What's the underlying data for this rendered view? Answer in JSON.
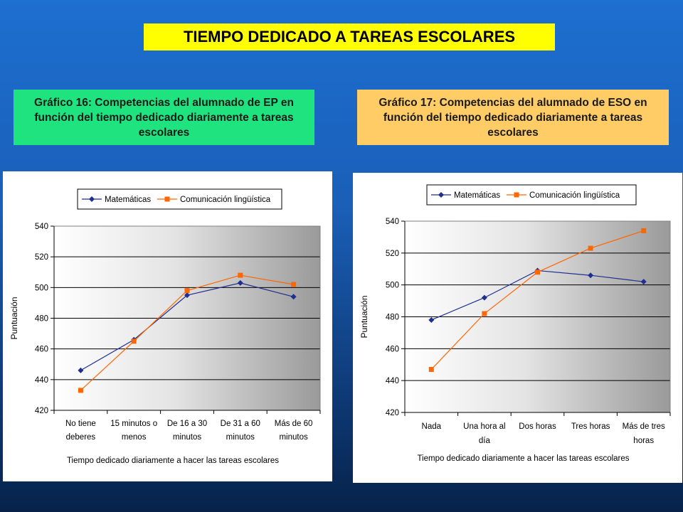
{
  "header": {
    "title": "TIEMPO DEDICADO A TAREAS ESCOLARES"
  },
  "captions": {
    "left": "Gráfico 16: Competencias del alumnado de EP en función del tiempo dedicado diariamente a tareas escolares",
    "right": "Gráfico 17: Competencias del alumnado de ESO en función del tiempo dedicado diariamente a tareas escolares"
  },
  "colors": {
    "matematicas": "#1f2f8f",
    "comunicacion": "#ff6600",
    "title_bg": "#ffff00",
    "caption_left_bg": "#1ee37f",
    "caption_right_bg": "#ffcc66"
  },
  "chart_data": [
    {
      "type": "line",
      "categories": [
        [
          "No tiene",
          "deberes"
        ],
        [
          "15 minutos o",
          "menos"
        ],
        [
          "De 16 a 30",
          "minutos"
        ],
        [
          "De 31 a 60",
          "minutos"
        ],
        [
          "Más de 60",
          "minutos"
        ]
      ],
      "series": [
        {
          "name": "Matemáticas",
          "marker": "diamond",
          "values": [
            446,
            466,
            495,
            503,
            494
          ]
        },
        {
          "name": "Comunicación lingüística",
          "marker": "square",
          "values": [
            433,
            465,
            498,
            508,
            502
          ]
        }
      ],
      "ylim": [
        420,
        540
      ],
      "yticks": [
        420,
        440,
        460,
        480,
        500,
        520,
        540
      ],
      "ylabel": "Puntuación",
      "xlabel": "Tiempo dedicado diariamente a hacer las tareas escolares",
      "grid": true,
      "legend": "top"
    },
    {
      "type": "line",
      "categories": [
        [
          "Nada"
        ],
        [
          "Una hora al",
          "día"
        ],
        [
          "Dos horas"
        ],
        [
          "Tres horas"
        ],
        [
          "Más de tres",
          "horas"
        ]
      ],
      "series": [
        {
          "name": "Matemáticas",
          "marker": "diamond",
          "values": [
            478,
            492,
            509,
            506,
            502
          ]
        },
        {
          "name": "Comunicación lingüística",
          "marker": "square",
          "values": [
            447,
            482,
            508,
            523,
            534
          ]
        }
      ],
      "ylim": [
        420,
        540
      ],
      "yticks": [
        420,
        440,
        460,
        480,
        500,
        520,
        540
      ],
      "ylabel": "Puntuación",
      "xlabel": "Tiempo dedicado diariamente a hacer las tareas escolares",
      "grid": true,
      "legend": "top"
    }
  ]
}
